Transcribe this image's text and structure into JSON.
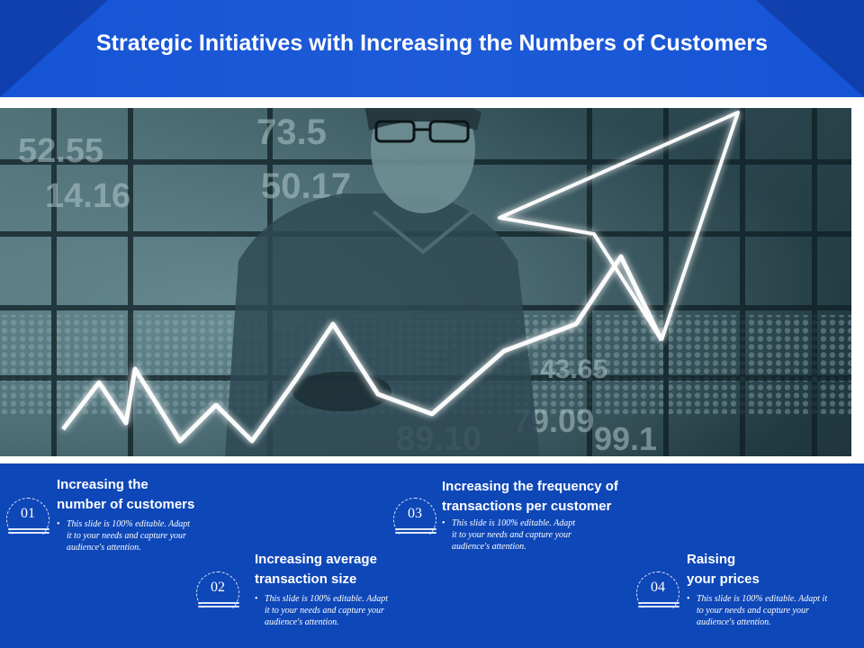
{
  "title": "Strategic Initiatives with Increasing the Numbers of Customers",
  "items": [
    {
      "number": "01",
      "heading_line1": "Increasing the",
      "heading_line2": "number of customers",
      "desc_line1": "This slide is 100% editable. Adapt",
      "desc_line2": "it to your needs and capture your",
      "desc_line3": "audience's attention."
    },
    {
      "number": "02",
      "heading_line1": "Increasing average",
      "heading_line2": "transaction size",
      "desc_line1": "This slide is 100% editable. Adapt",
      "desc_line2": "it to your needs and capture your",
      "desc_line3": "audience's attention."
    },
    {
      "number": "03",
      "heading_line1": "Increasing the frequency of",
      "heading_line2": "transactions per customer",
      "desc_line1": "This slide is 100% editable. Adapt",
      "desc_line2": "it to your needs and capture your",
      "desc_line3": "audience's attention."
    },
    {
      "number": "04",
      "heading_line1": "Raising",
      "heading_line2": "your prices",
      "desc_line1": "This slide is 100% editable. Adapt it",
      "desc_line2": "to your needs and capture your",
      "desc_line3": "audience's attention."
    }
  ],
  "photo": {
    "numbers": [
      "73.5",
      "50.17",
      "52.55",
      "14.16",
      "79.09",
      "43.65",
      "89.10",
      "99.1"
    ]
  },
  "colors": {
    "header_blue": "#1554d6",
    "panel_blue": "#0e47b8",
    "text_white": "#ffffff"
  }
}
